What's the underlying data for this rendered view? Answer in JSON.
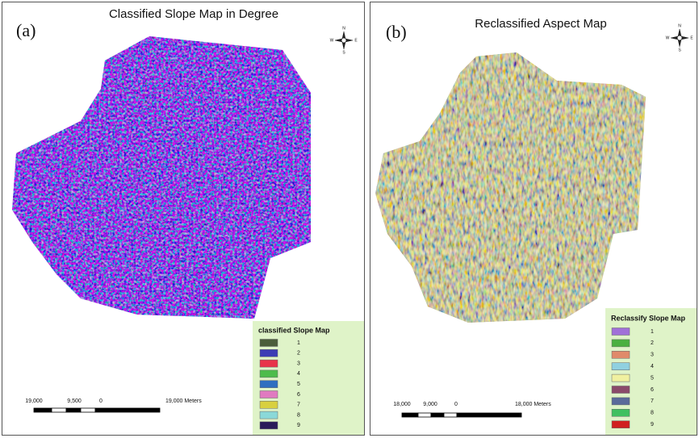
{
  "panels": [
    {
      "label": "(a)",
      "title": "Classified Slope Map in Degree",
      "compass": [
        "N",
        "S",
        "E",
        "W"
      ],
      "legend": {
        "title": "classified Slope Map",
        "items": [
          {
            "label": "1",
            "color": "#4b5d3a"
          },
          {
            "label": "2",
            "color": "#3c3cb4"
          },
          {
            "label": "3",
            "color": "#e8334a"
          },
          {
            "label": "4",
            "color": "#4cbc4c"
          },
          {
            "label": "5",
            "color": "#2f6fc0"
          },
          {
            "label": "6",
            "color": "#e07ac0"
          },
          {
            "label": "7",
            "color": "#d8d040"
          },
          {
            "label": "8",
            "color": "#8ad8d8"
          },
          {
            "label": "9",
            "color": "#2a1a5a"
          }
        ]
      },
      "scale_bar": [
        "19,000",
        "9,500",
        "0",
        "19,000 Meters"
      ]
    },
    {
      "label": "(b)",
      "title": "Reclassified Aspect Map",
      "compass": [
        "N",
        "S",
        "E",
        "W"
      ],
      "legend": {
        "title": "Reclassify Slope Map",
        "items": [
          {
            "label": "1",
            "color": "#a070d8"
          },
          {
            "label": "2",
            "color": "#4ab040"
          },
          {
            "label": "3",
            "color": "#e08a6a"
          },
          {
            "label": "4",
            "color": "#90d0e0"
          },
          {
            "label": "5",
            "color": "#f0f0a0"
          },
          {
            "label": "6",
            "color": "#8a4a6a"
          },
          {
            "label": "7",
            "color": "#5a6a9a"
          },
          {
            "label": "8",
            "color": "#40c060"
          },
          {
            "label": "9",
            "color": "#d02020"
          }
        ]
      },
      "scale_bar": [
        "18,000",
        "9,000",
        "0",
        "18,000 Meters"
      ]
    }
  ]
}
